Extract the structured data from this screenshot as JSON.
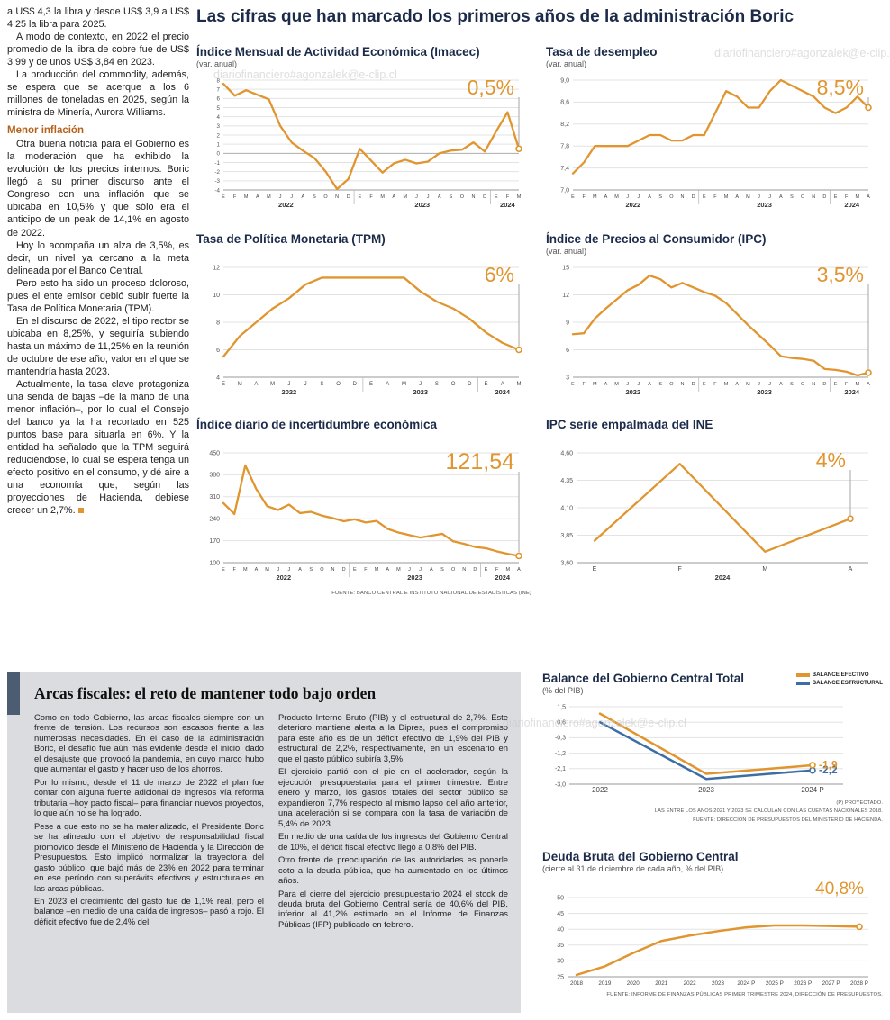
{
  "colors": {
    "orange": "#E0952F",
    "blue": "#3B6EA5",
    "navy": "#1C2B4A"
  },
  "watermark": "diariofinanciero#agonzalek@e-clip.cl",
  "main_title": "Las cifras que han marcado los primeros años de la administración Boric",
  "left_article": {
    "intro": [
      "a US$ 4,3 la libra y desde US$ 3,9 a US$ 4,25 la libra para 2025.",
      "A modo de contexto, en 2022 el precio promedio de la libra de cobre fue de US$ 3,99 y de unos US$ 3,84 en 2023.",
      "La producción del commodity, además, se espera que se acerque a los 6 millones de toneladas en 2025, según la ministra de Minería, Aurora Williams."
    ],
    "subhead": "Menor inflación",
    "body": [
      "Otra buena noticia para el Gobierno es la moderación que ha exhibido la evolución de los precios internos. Boric llegó a su primer discurso ante el Congreso con una inflación que se ubicaba en 10,5% y que sólo era el anticipo de un peak de 14,1% en agosto de 2022.",
      "Hoy lo acompaña un alza de 3,5%, es decir, un nivel ya cercano a la meta delineada por el Banco Central.",
      "Pero esto ha sido un proceso doloroso, pues el ente emisor debió subir fuerte la Tasa de Política Monetaria (TPM).",
      "En el discurso de 2022, el tipo rector se ubicaba en 8,25%, y seguiría subiendo hasta un máximo de 11,25% en la reunión de octubre de ese año, valor en el que se mantendría hasta 2023.",
      "Actualmente, la tasa clave protagoniza una senda de bajas –de la mano de una menor inflación–, por lo cual el Consejo del banco ya la ha recortado en 525 puntos base para situarla en 6%. Y la entidad ha señalado que la TPM seguirá reduciéndose, lo cual se espera tenga un efecto positivo en el consumo, y dé aire a una economía que, según las proyecciones de Hacienda, debiese crecer un 2,7%."
    ]
  },
  "chart_data": [
    {
      "name": "imacec",
      "type": "line",
      "title": "Índice Mensual de Actividad Económica (Imacec)",
      "subtitle": "(var. anual)",
      "y_min": -4,
      "y_max": 8,
      "y_ticks": [
        8,
        7,
        6,
        5,
        4,
        3,
        2,
        1,
        0,
        -1,
        -2,
        -3,
        -4
      ],
      "y_tick_labels": [
        "8",
        "7",
        "6",
        "5",
        "4",
        "3",
        "2",
        "1",
        "0",
        "-1",
        "-2",
        "-3",
        "-4"
      ],
      "y_tick_size": 6.2,
      "x_labels": [
        "E",
        "F",
        "M",
        "A",
        "M",
        "J",
        "J",
        "A",
        "S",
        "O",
        "N",
        "D",
        "E",
        "F",
        "M",
        "A",
        "M",
        "J",
        "J",
        "A",
        "S",
        "O",
        "N",
        "D",
        "E",
        "F",
        "M"
      ],
      "x_label_size": 5.5,
      "year_groups": [
        {
          "label": "2022",
          "from": 0,
          "to": 11
        },
        {
          "label": "2023",
          "from": 12,
          "to": 23
        },
        {
          "label": "2024",
          "from": 24,
          "to": 26
        }
      ],
      "series": [
        {
          "name": "Imacec",
          "color": "#E0952F",
          "end_marker": true,
          "values": [
            7.6,
            6.3,
            6.9,
            6.4,
            5.9,
            3.0,
            1.2,
            0.3,
            -0.5,
            -2.0,
            -3.9,
            -2.8,
            0.5,
            -0.8,
            -2.1,
            -1.1,
            -0.7,
            -1.1,
            -0.9,
            0.0,
            0.3,
            0.4,
            1.2,
            0.2,
            2.4,
            4.5,
            0.5
          ]
        }
      ],
      "big": {
        "text": "0,5%",
        "size": 23,
        "y": 26,
        "line": true,
        "x_mode": "last"
      },
      "m": {
        "l": 30,
        "r": 14,
        "t": 10,
        "b": 30
      }
    },
    {
      "name": "desempleo",
      "type": "line",
      "title": "Tasa de desempleo",
      "subtitle": "(var. anual)",
      "y_min": 7.0,
      "y_max": 9.0,
      "y_ticks": [
        9.0,
        8.6,
        8.2,
        7.8,
        7.4,
        7.0
      ],
      "y_tick_labels": [
        "9,0",
        "8,6",
        "8,2",
        "7,8",
        "7,4",
        "7,0"
      ],
      "x_labels": [
        "E",
        "F",
        "M",
        "A",
        "M",
        "J",
        "J",
        "A",
        "S",
        "O",
        "N",
        "D",
        "E",
        "F",
        "M",
        "A",
        "M",
        "J",
        "J",
        "A",
        "S",
        "O",
        "N",
        "D",
        "E",
        "F",
        "M",
        "A"
      ],
      "x_label_size": 5.5,
      "year_groups": [
        {
          "label": "2022",
          "from": 0,
          "to": 11
        },
        {
          "label": "2023",
          "from": 12,
          "to": 23
        },
        {
          "label": "2024",
          "from": 24,
          "to": 27
        }
      ],
      "series": [
        {
          "name": "Tasa de desempleo",
          "color": "#E0952F",
          "end_marker": true,
          "values": [
            7.3,
            7.5,
            7.8,
            7.8,
            7.8,
            7.8,
            7.9,
            8.0,
            8.0,
            7.9,
            7.9,
            8.0,
            8.0,
            8.4,
            8.8,
            8.7,
            8.5,
            8.5,
            8.8,
            9.0,
            8.9,
            8.8,
            8.7,
            8.5,
            8.4,
            8.5,
            8.7,
            8.5
          ]
        }
      ],
      "big": {
        "text": "8,5%",
        "size": 23,
        "y": 26,
        "line": true,
        "x_mode": "last"
      },
      "m": {
        "l": 30,
        "r": 14,
        "t": 10,
        "b": 30
      }
    },
    {
      "name": "tpm",
      "type": "line",
      "title": "Tasa de Política Monetaria (TPM)",
      "subtitle": "",
      "y_min": 4,
      "y_max": 12,
      "y_ticks": [
        12,
        10,
        8,
        6,
        4
      ],
      "y_tick_labels": [
        "12",
        "10",
        "8",
        "6",
        "4"
      ],
      "x_labels": [
        "E",
        "M",
        "A",
        "M",
        "J",
        "J",
        "S",
        "O",
        "D",
        "E",
        "A",
        "M",
        "J",
        "S",
        "O",
        "D",
        "E",
        "A",
        "M"
      ],
      "x_label_size": 6,
      "year_groups": [
        {
          "label": "2022",
          "from": 0,
          "to": 8
        },
        {
          "label": "2023",
          "from": 9,
          "to": 15
        },
        {
          "label": "2024",
          "from": 16,
          "to": 18
        }
      ],
      "series": [
        {
          "name": "TPM",
          "color": "#E0952F",
          "end_marker": true,
          "values": [
            5.5,
            7.0,
            8.0,
            9.0,
            9.75,
            10.75,
            11.25,
            11.25,
            11.25,
            11.25,
            11.25,
            11.25,
            10.25,
            9.5,
            9.0,
            8.25,
            7.25,
            6.5,
            6.0
          ]
        }
      ],
      "big": {
        "text": "6%",
        "size": 23,
        "y": 26,
        "line": true,
        "x_mode": "last"
      },
      "m": {
        "l": 30,
        "r": 14,
        "t": 10,
        "b": 30
      }
    },
    {
      "name": "ipc",
      "type": "line",
      "title": "Índice de Precios al Consumidor (IPC)",
      "subtitle": "(var. anual)",
      "y_min": 3,
      "y_max": 15,
      "y_ticks": [
        15,
        12,
        9,
        6,
        3
      ],
      "y_tick_labels": [
        "15",
        "12",
        "9",
        "6",
        "3"
      ],
      "x_labels": [
        "E",
        "F",
        "M",
        "A",
        "M",
        "J",
        "J",
        "A",
        "S",
        "O",
        "N",
        "D",
        "E",
        "F",
        "M",
        "A",
        "M",
        "J",
        "J",
        "A",
        "S",
        "O",
        "N",
        "D",
        "E",
        "F",
        "M",
        "A"
      ],
      "x_label_size": 5.5,
      "year_groups": [
        {
          "label": "2022",
          "from": 0,
          "to": 11
        },
        {
          "label": "2023",
          "from": 12,
          "to": 23
        },
        {
          "label": "2024",
          "from": 24,
          "to": 27
        }
      ],
      "series": [
        {
          "name": "IPC",
          "color": "#E0952F",
          "end_marker": true,
          "values": [
            7.7,
            7.8,
            9.4,
            10.5,
            11.5,
            12.5,
            13.1,
            14.1,
            13.7,
            12.8,
            13.3,
            12.8,
            12.3,
            11.9,
            11.1,
            9.9,
            8.7,
            7.6,
            6.5,
            5.3,
            5.1,
            5.0,
            4.8,
            3.9,
            3.8,
            3.6,
            3.2,
            3.5
          ]
        }
      ],
      "big": {
        "text": "3,5%",
        "size": 23,
        "y": 26,
        "line": true,
        "x_mode": "last"
      },
      "m": {
        "l": 30,
        "r": 14,
        "t": 10,
        "b": 30
      }
    },
    {
      "name": "incertidumbre",
      "type": "line",
      "title": "Índice diario de incertidumbre económica",
      "subtitle": "",
      "y_min": 100,
      "y_max": 450,
      "y_ticks": [
        450,
        380,
        310,
        240,
        170,
        100
      ],
      "y_tick_labels": [
        "450",
        "380",
        "310",
        "240",
        "170",
        "100"
      ],
      "x_labels": [
        "E",
        "F",
        "M",
        "A",
        "M",
        "J",
        "J",
        "A",
        "S",
        "O",
        "N",
        "D",
        "E",
        "F",
        "M",
        "A",
        "M",
        "J",
        "J",
        "A",
        "S",
        "O",
        "N",
        "D",
        "E",
        "F",
        "M",
        "A"
      ],
      "x_label_size": 5.5,
      "year_groups": [
        {
          "label": "2022",
          "from": 0,
          "to": 11
        },
        {
          "label": "2023",
          "from": 12,
          "to": 23
        },
        {
          "label": "2024",
          "from": 24,
          "to": 27
        }
      ],
      "series": [
        {
          "name": "Incertidumbre económica",
          "color": "#E0952F",
          "end_marker": true,
          "values": [
            290,
            255,
            410,
            335,
            280,
            268,
            285,
            258,
            262,
            250,
            242,
            232,
            238,
            228,
            233,
            208,
            196,
            188,
            180,
            186,
            192,
            168,
            160,
            150,
            146,
            136,
            128,
            121.54
          ]
        }
      ],
      "big": {
        "text": "121,54",
        "size": 25,
        "y": 28,
        "line": true,
        "x_mode": "last"
      },
      "source": "FUENTE: BANCO CENTRAL E INSTITUTO NACIONAL DE ESTADÍSTICAS (INE)",
      "m": {
        "l": 30,
        "r": 14,
        "t": 10,
        "b": 30
      }
    },
    {
      "name": "ipc-ine",
      "type": "line",
      "title": "IPC serie empalmada del INE",
      "subtitle": "",
      "y_min": 3.6,
      "y_max": 4.6,
      "y_ticks": [
        4.6,
        4.35,
        4.1,
        3.85,
        3.6
      ],
      "y_tick_labels": [
        "4,60",
        "4,35",
        "4,10",
        "3,85",
        "3,60"
      ],
      "x_labels": [
        "E",
        "F",
        "M",
        "A"
      ],
      "x_label_size": 7,
      "x_inset": 20,
      "year_groups": [
        {
          "label": "2024",
          "from": 0,
          "to": 3
        }
      ],
      "series": [
        {
          "name": "IPC serie empalmada",
          "color": "#E0952F",
          "end_marker": true,
          "values": [
            3.8,
            4.5,
            3.7,
            4.0
          ]
        }
      ],
      "big": {
        "text": "4%",
        "size": 23,
        "y": 26,
        "line": true,
        "x_mode": "last"
      },
      "m": {
        "l": 34,
        "r": 14,
        "t": 10,
        "b": 30
      }
    },
    {
      "name": "balance",
      "type": "line",
      "title": "Balance del Gobierno Central Total",
      "subtitle": "(% del PIB)",
      "legend": [
        {
          "label": "BALANCE EFECTIVO",
          "color": "#E0952F"
        },
        {
          "label": "BALANCE ESTRUCTURAL",
          "color": "#3B6EA5"
        }
      ],
      "y_min": -3.0,
      "y_max": 1.5,
      "y_ticks": [
        1.5,
        0.6,
        -0.3,
        -1.2,
        -2.1,
        -3.0
      ],
      "y_tick_labels": [
        "1,5",
        "0,6",
        "-0,3",
        "-1,2",
        "-2,1",
        "-3,0"
      ],
      "x_labels": [
        "2022",
        "2023",
        "2024 P"
      ],
      "x_label_size": 8,
      "x_inset": 34,
      "series": [
        {
          "name": "Balance estructural",
          "color": "#3B6EA5",
          "end_marker": true,
          "end_label": "-2,2",
          "values": [
            0.6,
            -2.7,
            -2.2
          ]
        },
        {
          "name": "Balance efectivo",
          "color": "#E0952F",
          "end_marker": true,
          "end_label": "-1,9",
          "values": [
            1.1,
            -2.4,
            -1.9
          ]
        }
      ],
      "notes": [
        "(P) PROYECTADO.",
        "LAS ENTRE LOS AÑOS 2021 Y 2023 SE CALCULAN  CON LAS CUENTAS NACIONALES 2018.",
        "FUENTE: DIRECCIÓN DE PRESUPUESTOS DEL MINISTERIO DE HACIENDA."
      ],
      "line_width": 2.5,
      "m": {
        "l": 30,
        "r": 44,
        "t": 10,
        "b": 16
      }
    },
    {
      "name": "deuda",
      "type": "line",
      "title": "Deuda Bruta del Gobierno Central",
      "subtitle": "(cierre al 31 de diciembre de cada año, % del PIB)",
      "y_min": 25,
      "y_max": 50,
      "y_ticks": [
        50,
        45,
        40,
        35,
        30,
        25
      ],
      "y_tick_labels": [
        "50",
        "45",
        "40",
        "35",
        "30",
        "25"
      ],
      "x_labels": [
        "2018",
        "2019",
        "2020",
        "2021",
        "2022",
        "2023",
        "2024 P",
        "2025 P",
        "2026 P",
        "2027 P",
        "2028 P"
      ],
      "x_label_size": 6.3,
      "x_inset": 10,
      "series": [
        {
          "name": "Deuda bruta",
          "color": "#E0952F",
          "end_marker": true,
          "values": [
            25.6,
            28.3,
            32.5,
            36.3,
            38.0,
            39.4,
            40.6,
            41.2,
            41.2,
            41.0,
            40.8
          ]
        }
      ],
      "big": {
        "text": "40,8%",
        "size": 19,
        "y": 20,
        "line": false,
        "x_mode": "right"
      },
      "source": "FUENTE: INFORME DE FINANZAS PÚBLICAS PRIMER TRIMESTRE 2024, DIRECCIÓN DE PRESUPUESTOS.",
      "line_width": 2.5,
      "m": {
        "l": 28,
        "r": 16,
        "t": 24,
        "b": 16
      }
    }
  ],
  "fiscal_article": {
    "title": "Arcas fiscales: el reto de mantener todo bajo orden",
    "col1": [
      "Como en todo Gobierno, las arcas fiscales siempre son un frente de tensión. Los recursos son escasos frente a las numerosas necesidades. En el caso de la administración Boric, el desafío fue aún más evidente desde el inicio, dado el desajuste que provocó la pandemia, en cuyo marco hubo que aumentar el gasto y hacer uso de los ahorros.",
      "Por lo mismo, desde el 11 de marzo de 2022 el plan fue contar con alguna fuente adicional de ingresos vía reforma tributaria –hoy pacto fiscal– para financiar nuevos proyectos, lo que aún no se ha logrado.",
      "Pese a que esto no se ha materializado, el Presidente Boric se ha alineado con el objetivo de responsabilidad fiscal promovido desde el Ministerio de Hacienda y la Dirección de Presupuestos. Esto implicó normalizar la trayectoria del gasto público, que bajó más de 23% en 2022 para terminar en ese período con superávits efectivos y estructurales en las arcas públicas.",
      "En 2023 el crecimiento del gasto fue de 1,1% real, pero el balance –en medio de una caída de ingresos– pasó a rojo. El déficit efectivo fue de 2,4% del"
    ],
    "col2": [
      "Producto Interno Bruto (PIB) y el estructural de 2,7%. Este deterioro mantiene alerta a la Dipres, pues el compromiso para este año es de un déficit efectivo de 1,9% del PIB y estructural de 2,2%, respectivamente, en un escenario en que el gasto público subiría 3,5%.",
      "El ejercicio partió con el pie en el acelerador, según la ejecución presupuestaria para el primer trimestre. Entre enero y marzo, los gastos totales del sector público se expandieron 7,7% respecto al mismo lapso del año anterior, una aceleración si se compara con la tasa de variación de 5,4% de 2023.",
      "En medio de una caída de los ingresos del Gobierno Central de 10%, el déficit fiscal efectivo llegó a 0,8% del PIB.",
      "Otro frente de preocupación de las autoridades es ponerle coto a la deuda pública, que ha aumentado en los últimos años.",
      "Para el cierre del ejercicio presupuestario 2024 el stock de deuda bruta del Gobierno Central sería de 40,6% del PIB, inferior al 41,2% estimado en el Informe de Finanzas Públicas (IFP) publicado en febrero."
    ]
  }
}
